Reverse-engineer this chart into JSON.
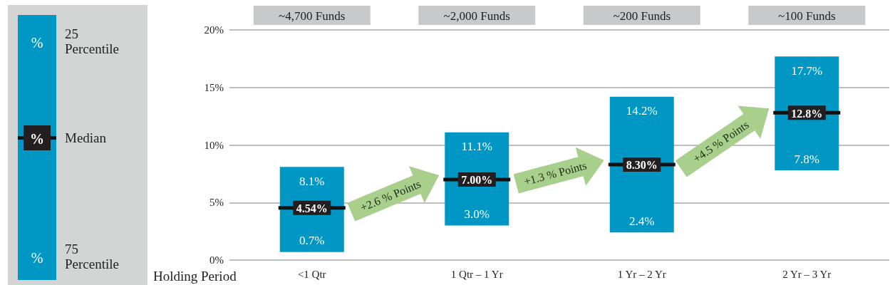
{
  "chart_data": {
    "type": "box",
    "xlabel": "Holding Period",
    "categories": [
      "<1 Qtr",
      "1 Qtr – 1 Yr",
      "1 Yr – 2 Yr",
      "2 Yr – 3 Yr"
    ],
    "color": "#0097c4",
    "boxes": [
      {
        "q1": 0.7,
        "median": 4.54,
        "q3": 8.1
      },
      {
        "q1": 3.0,
        "median": 7.0,
        "q3": 11.1
      },
      {
        "q1": 2.4,
        "median": 8.3,
        "q3": 14.2
      },
      {
        "q1": 7.8,
        "median": 12.8,
        "q3": 17.7
      }
    ],
    "value_labels": [
      [
        "8.1%",
        "4.54%",
        "0.7%"
      ],
      [
        "11.1%",
        "7.00%",
        "3.0%"
      ],
      [
        "14.2%",
        "8.30%",
        "2.4%"
      ],
      [
        "17.7%",
        "12.8%",
        "7.8%"
      ]
    ],
    "ylim": [
      0,
      20
    ],
    "yticks": [
      {
        "value": 0,
        "label": "0%"
      },
      {
        "value": 5,
        "label": "5%"
      },
      {
        "value": 10,
        "label": "10%"
      },
      {
        "value": 15,
        "label": "15%"
      },
      {
        "value": 20,
        "label": "20%"
      }
    ],
    "grid": "y",
    "annotations": [
      "~4,700 Funds",
      "~2,000 Funds",
      "~200 Funds",
      "~100 Funds",
      "+2.6 % Points",
      "+1.3 % Points",
      "+4.5 % Points",
      "%",
      "25 Percentile",
      "%",
      "Median",
      "%",
      "75 Percentile"
    ]
  }
}
